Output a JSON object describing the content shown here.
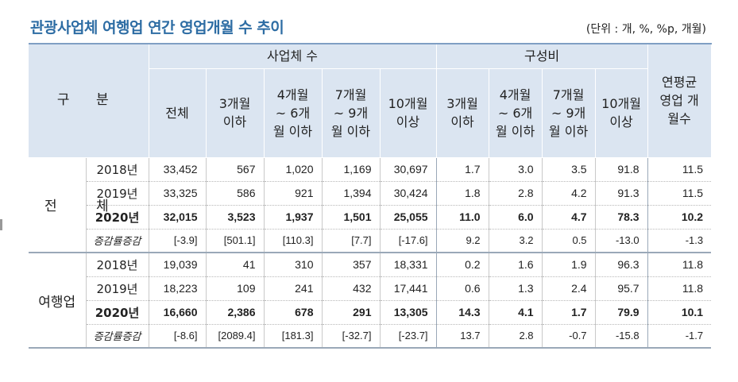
{
  "title": "관광사업체 여행업 연간 영업개월 수 추이",
  "unit": "(단위 : 개, %, %p, 개월)",
  "header": {
    "gubun": "구 분",
    "group_count": "사업체 수",
    "group_ratio": "구성비",
    "avg": "연평균 영업 개월수",
    "count_cols": [
      "전체",
      "3개월 이하",
      "4개월 ~ 6개월 이하",
      "7개월 ~ 9개월 이하",
      "10개월 이상"
    ],
    "ratio_cols": [
      "3개월 이하",
      "4개월 ~ 6개월 이하",
      "7개월 ~ 9개월 이하",
      "10개월 이상"
    ]
  },
  "sections": [
    {
      "label": "전 체",
      "rows": [
        {
          "year": "2018년",
          "v": [
            "33,452",
            "567",
            "1,020",
            "1,169",
            "30,697",
            "1.7",
            "3.0",
            "3.5",
            "91.8",
            "11.5"
          ]
        },
        {
          "year": "2019년",
          "v": [
            "33,325",
            "586",
            "921",
            "1,394",
            "30,424",
            "1.8",
            "2.8",
            "4.2",
            "91.3",
            "11.5"
          ]
        },
        {
          "year": "2020년",
          "v": [
            "32,015",
            "3,523",
            "1,937",
            "1,501",
            "25,055",
            "11.0",
            "6.0",
            "4.7",
            "78.3",
            "10.2"
          ]
        },
        {
          "year": "증감률증감",
          "v": [
            "[-3.9]",
            "[501.1]",
            "[110.3]",
            "[7.7]",
            "[-17.6]",
            "9.2",
            "3.2",
            "0.5",
            "-13.0",
            "-1.3"
          ]
        }
      ]
    },
    {
      "label": "여행업",
      "rows": [
        {
          "year": "2018년",
          "v": [
            "19,039",
            "41",
            "310",
            "357",
            "18,331",
            "0.2",
            "1.6",
            "1.9",
            "96.3",
            "11.8"
          ]
        },
        {
          "year": "2019년",
          "v": [
            "18,223",
            "109",
            "241",
            "432",
            "17,441",
            "0.6",
            "1.3",
            "2.4",
            "95.7",
            "11.8"
          ]
        },
        {
          "year": "2020년",
          "v": [
            "16,660",
            "2,386",
            "678",
            "291",
            "13,305",
            "14.3",
            "4.1",
            "1.7",
            "79.9",
            "10.1"
          ]
        },
        {
          "year": "증감률증감",
          "v": [
            "[-8.6]",
            "[2089.4]",
            "[181.3]",
            "[-32.7]",
            "[-23.7]",
            "13.7",
            "2.8",
            "-0.7",
            "-15.8",
            "-1.7"
          ]
        }
      ]
    }
  ]
}
